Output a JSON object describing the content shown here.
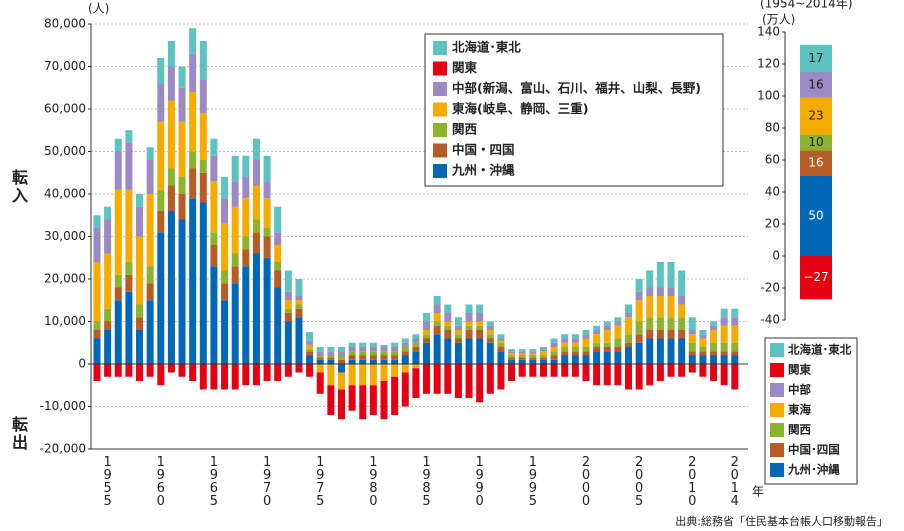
{
  "chart_data": [
    {
      "type": "bar",
      "stacked": true,
      "y_label": "(人)",
      "inflow_label": "転入",
      "outflow_label": "転出",
      "x_label": "年",
      "source": "出典:総務省「住民基本台帳人口移動報告」",
      "categories": [
        null,
        "1955",
        null,
        null,
        null,
        null,
        "1960",
        null,
        null,
        null,
        null,
        "1965",
        null,
        null,
        null,
        null,
        "1970",
        null,
        null,
        null,
        null,
        "1975",
        null,
        null,
        null,
        null,
        "1980",
        null,
        null,
        null,
        null,
        "1985",
        null,
        null,
        null,
        null,
        "1990",
        null,
        null,
        null,
        null,
        "1995",
        null,
        null,
        null,
        null,
        "2000",
        null,
        null,
        null,
        null,
        "2005",
        null,
        null,
        null,
        null,
        "2010",
        null,
        null,
        null,
        "2014"
      ],
      "ylim": [
        -20000,
        80000
      ],
      "yticks": [
        {
          "value": -20000,
          "label": "-20,000"
        },
        {
          "value": -10000,
          "label": "-10,000"
        },
        0,
        {
          "value": 10000,
          "label": "10,000"
        },
        {
          "value": 20000,
          "label": "20,000"
        },
        {
          "value": 30000,
          "label": "30,000"
        },
        {
          "value": 40000,
          "label": "40,000"
        },
        {
          "value": 50000,
          "label": "50,000"
        },
        {
          "value": 60000,
          "label": "60,000"
        },
        {
          "value": 70000,
          "label": "70,000"
        },
        {
          "value": 80000,
          "label": "80,000"
        }
      ],
      "grid": true,
      "legend": "upper right",
      "series": [
        {
          "name": "北海道･東北",
          "color": "#5cc3c0",
          "values": [
            3000,
            3000,
            3000,
            3000,
            3000,
            3000,
            6000,
            6000,
            5000,
            6000,
            9000,
            4000,
            5000,
            6000,
            5000,
            5000,
            6000,
            6000,
            5000,
            4000,
            2000,
            1000,
            1000,
            1000,
            1000,
            1000,
            1000,
            500,
            1000,
            1000,
            1000,
            2000,
            2000,
            2000,
            2000,
            2000,
            2000,
            1000,
            1000,
            500,
            500,
            500,
            500,
            1000,
            1000,
            1000,
            1000,
            1000,
            1000,
            1000,
            2000,
            3000,
            4000,
            6000,
            6000,
            6000,
            3000,
            1000,
            1000,
            2000,
            2000
          ]
        },
        {
          "name": "関東",
          "color": "#e60012",
          "values": [
            -4000,
            -3000,
            -3000,
            -3000,
            -4000,
            -3000,
            -5000,
            -2000,
            -3000,
            -4000,
            -6000,
            -6000,
            -6000,
            -6000,
            -5000,
            -5000,
            -4000,
            -4000,
            -3000,
            -2000,
            -3000,
            -5000,
            -7000,
            -7000,
            -6000,
            -8000,
            -7000,
            -9000,
            -9000,
            -8000,
            -7000,
            -7000,
            -7000,
            -7000,
            -8000,
            -8000,
            -9000,
            -7000,
            -6000,
            -4000,
            -3000,
            -3000,
            -3000,
            -3000,
            -3000,
            -3000,
            -4000,
            -5000,
            -5000,
            -5000,
            -6000,
            -6000,
            -5000,
            -4000,
            -3000,
            -3000,
            -2000,
            -3000,
            -4000,
            -5000,
            -6000
          ]
        },
        {
          "name": "中部(新潟、富山、石川、福井、山梨、長野)",
          "color": "#9b8ac4",
          "values": [
            8000,
            8000,
            9000,
            11000,
            7000,
            8000,
            9000,
            8000,
            8000,
            9000,
            8000,
            6000,
            6000,
            6000,
            5000,
            6000,
            4000,
            3000,
            2000,
            1000,
            1000,
            1000,
            1000,
            1000,
            1000,
            1000,
            1000,
            1000,
            1000,
            1000,
            1000,
            2000,
            2000,
            2000,
            1000,
            2000,
            2000,
            1000,
            500,
            500,
            500,
            500,
            500,
            1000,
            1000,
            1000,
            1000,
            1000,
            1000,
            1000,
            1000,
            2000,
            2000,
            2000,
            2000,
            2000,
            1000,
            1000,
            1000,
            2000,
            2000
          ]
        },
        {
          "name": "東海(岐阜、静岡、三重)",
          "color": "#f6ab00",
          "values": [
            14000,
            13000,
            20000,
            17000,
            16000,
            17000,
            16000,
            16000,
            13000,
            14000,
            11000,
            12000,
            11000,
            11000,
            9000,
            8000,
            7000,
            4000,
            2000,
            1000,
            1000,
            -2000,
            -5000,
            -4000,
            -5000,
            -5000,
            -5000,
            -4000,
            -3000,
            -2000,
            -1000,
            1000,
            2000,
            1000,
            1000,
            1000,
            1000,
            1000,
            500,
            500,
            500,
            500,
            1000,
            1000,
            1000,
            1000,
            2000,
            2000,
            3000,
            3000,
            4000,
            5000,
            5000,
            5000,
            5000,
            3000,
            2000,
            2000,
            3000,
            4000,
            4000
          ]
        },
        {
          "name": "関西",
          "color": "#8db22c",
          "values": [
            2000,
            3000,
            3000,
            3000,
            3000,
            4000,
            5000,
            4000,
            4000,
            4000,
            3000,
            3000,
            3000,
            3000,
            3000,
            3000,
            2000,
            2000,
            1000,
            1000,
            500,
            500,
            500,
            1000,
            1000,
            1000,
            1000,
            1000,
            1000,
            1000,
            1000,
            1000,
            1000,
            1000,
            1000,
            1000,
            1000,
            1000,
            1000,
            500,
            500,
            500,
            500,
            1000,
            1000,
            1000,
            1000,
            1000,
            1000,
            2000,
            2000,
            3000,
            3000,
            3000,
            3000,
            3000,
            2000,
            1000,
            2000,
            2000,
            2000
          ]
        },
        {
          "name": "中国・四国",
          "color": "#b85c26",
          "values": [
            2000,
            2000,
            3000,
            4000,
            3000,
            4000,
            5000,
            6000,
            6000,
            7000,
            7000,
            5000,
            4000,
            4000,
            4000,
            5000,
            5000,
            4000,
            2000,
            2000,
            1000,
            500,
            500,
            1000,
            1000,
            1000,
            1000,
            1000,
            1000,
            1000,
            1000,
            1000,
            2000,
            2000,
            1000,
            2000,
            2000,
            1000,
            1000,
            500,
            500,
            500,
            500,
            1000,
            1000,
            1000,
            1000,
            1000,
            1000,
            1000,
            1000,
            2000,
            2000,
            2000,
            2000,
            2000,
            1000,
            1000,
            1000,
            1000,
            1000
          ]
        },
        {
          "name": "九州・沖縄",
          "color": "#0068b7",
          "values": [
            6000,
            8000,
            15000,
            17000,
            8000,
            15000,
            31000,
            36000,
            34000,
            39000,
            38000,
            23000,
            15000,
            19000,
            23000,
            26000,
            25000,
            18000,
            10000,
            11000,
            2000,
            1000,
            1000,
            -2000,
            1000,
            1000,
            1000,
            1000,
            1000,
            2000,
            3000,
            5000,
            7000,
            6000,
            5000,
            6000,
            6000,
            5000,
            3000,
            1000,
            1000,
            1000,
            1000,
            1000,
            2000,
            2000,
            2000,
            3000,
            3000,
            3000,
            4000,
            5000,
            6000,
            6000,
            6000,
            6000,
            2000,
            2000,
            2000,
            2000,
            2000
          ]
        }
      ]
    },
    {
      "type": "bar",
      "stacked": true,
      "title": "(1954~2014年)",
      "y_label": "(万人)",
      "categories": [
        null
      ],
      "ylim": [
        -40,
        140
      ],
      "yticks": [
        -40,
        -20,
        0,
        20,
        40,
        60,
        80,
        100,
        120,
        140
      ],
      "legend": "below",
      "series": [
        {
          "name": "北海道･東北",
          "color": "#5cc3c0",
          "values": [
            17
          ]
        },
        {
          "name": "関東",
          "color": "#e60012",
          "values": [
            -27
          ],
          "value_labels": [
            "−27"
          ]
        },
        {
          "name": "中部",
          "color": "#9b8ac4",
          "values": [
            16
          ]
        },
        {
          "name": "東海",
          "color": "#f6ab00",
          "values": [
            23
          ]
        },
        {
          "name": "関西",
          "color": "#8db22c",
          "values": [
            10
          ]
        },
        {
          "name": "中国･四国",
          "color": "#b85c26",
          "values": [
            16
          ]
        },
        {
          "name": "九州･沖縄",
          "color": "#0068b7",
          "values": [
            50
          ]
        }
      ]
    }
  ]
}
